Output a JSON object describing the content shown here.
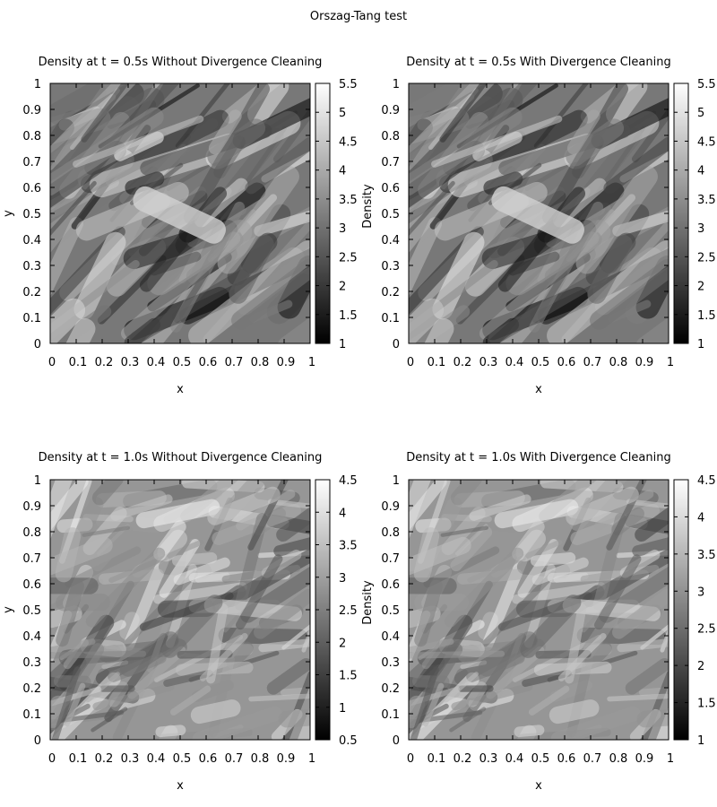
{
  "figure": {
    "title": "Orszag-Tang test"
  },
  "chart_data": [
    {
      "type": "heatmap",
      "title": "Density at t = 0.5s Without Divergence Cleaning",
      "xlabel": "x",
      "ylabel": "y",
      "colorbar_label": "",
      "x_ticks": [
        "0",
        "0.1",
        "0.2",
        "0.3",
        "0.4",
        "0.5",
        "0.6",
        "0.7",
        "0.8",
        "0.9",
        "1"
      ],
      "y_ticks": [
        "0",
        "0.1",
        "0.2",
        "0.3",
        "0.4",
        "0.5",
        "0.6",
        "0.7",
        "0.8",
        "0.9",
        "1"
      ],
      "xlim": [
        0,
        1
      ],
      "ylim": [
        0,
        1
      ],
      "colorbar_ticks": [
        "1",
        "1.5",
        "2",
        "2.5",
        "3",
        "3.5",
        "4",
        "4.5",
        "5",
        "5.5"
      ],
      "color_range": [
        1,
        5.5
      ],
      "colormap": [
        "#000000",
        "#ffffff"
      ],
      "time": 0.5,
      "divergence_cleaning": false
    },
    {
      "type": "heatmap",
      "title": "Density at t = 0.5s With Divergence Cleaning",
      "xlabel": "x",
      "ylabel": "",
      "colorbar_label": "Density",
      "x_ticks": [
        "0",
        "0.1",
        "0.2",
        "0.3",
        "0.4",
        "0.5",
        "0.6",
        "0.7",
        "0.8",
        "0.9",
        "1"
      ],
      "y_ticks": [
        "0",
        "0.1",
        "0.2",
        "0.3",
        "0.4",
        "0.5",
        "0.6",
        "0.7",
        "0.8",
        "0.9",
        "1"
      ],
      "xlim": [
        0,
        1
      ],
      "ylim": [
        0,
        1
      ],
      "colorbar_ticks": [
        "1",
        "1.5",
        "2",
        "2.5",
        "3",
        "3.5",
        "4",
        "4.5",
        "5",
        "5.5"
      ],
      "color_range": [
        1,
        5.5
      ],
      "colormap": [
        "#000000",
        "#ffffff"
      ],
      "time": 0.5,
      "divergence_cleaning": true
    },
    {
      "type": "heatmap",
      "title": "Density at t = 1.0s Without Divergence Cleaning",
      "xlabel": "x",
      "ylabel": "y",
      "colorbar_label": "",
      "x_ticks": [
        "0",
        "0.1",
        "0.2",
        "0.3",
        "0.4",
        "0.5",
        "0.6",
        "0.7",
        "0.8",
        "0.9",
        "1"
      ],
      "y_ticks": [
        "0",
        "0.1",
        "0.2",
        "0.3",
        "0.4",
        "0.5",
        "0.6",
        "0.7",
        "0.8",
        "0.9",
        "1"
      ],
      "xlim": [
        0,
        1
      ],
      "ylim": [
        0,
        1
      ],
      "colorbar_ticks": [
        "0.5",
        "1",
        "1.5",
        "2",
        "2.5",
        "3",
        "3.5",
        "4",
        "4.5"
      ],
      "color_range": [
        0.5,
        4.5
      ],
      "colormap": [
        "#000000",
        "#ffffff"
      ],
      "time": 1.0,
      "divergence_cleaning": false
    },
    {
      "type": "heatmap",
      "title": "Density at t = 1.0s With Divergence Cleaning",
      "xlabel": "x",
      "ylabel": "",
      "colorbar_label": "Density",
      "x_ticks": [
        "0",
        "0.1",
        "0.2",
        "0.3",
        "0.4",
        "0.5",
        "0.6",
        "0.7",
        "0.8",
        "0.9",
        "1"
      ],
      "y_ticks": [
        "0",
        "0.1",
        "0.2",
        "0.3",
        "0.4",
        "0.5",
        "0.6",
        "0.7",
        "0.8",
        "0.9",
        "1"
      ],
      "xlim": [
        0,
        1
      ],
      "ylim": [
        0,
        1
      ],
      "colorbar_ticks": [
        "1",
        "1.5",
        "2",
        "2.5",
        "3",
        "3.5",
        "4",
        "4.5"
      ],
      "color_range": [
        1,
        4.5
      ],
      "colormap": [
        "#000000",
        "#ffffff"
      ],
      "time": 1.0,
      "divergence_cleaning": true
    }
  ]
}
